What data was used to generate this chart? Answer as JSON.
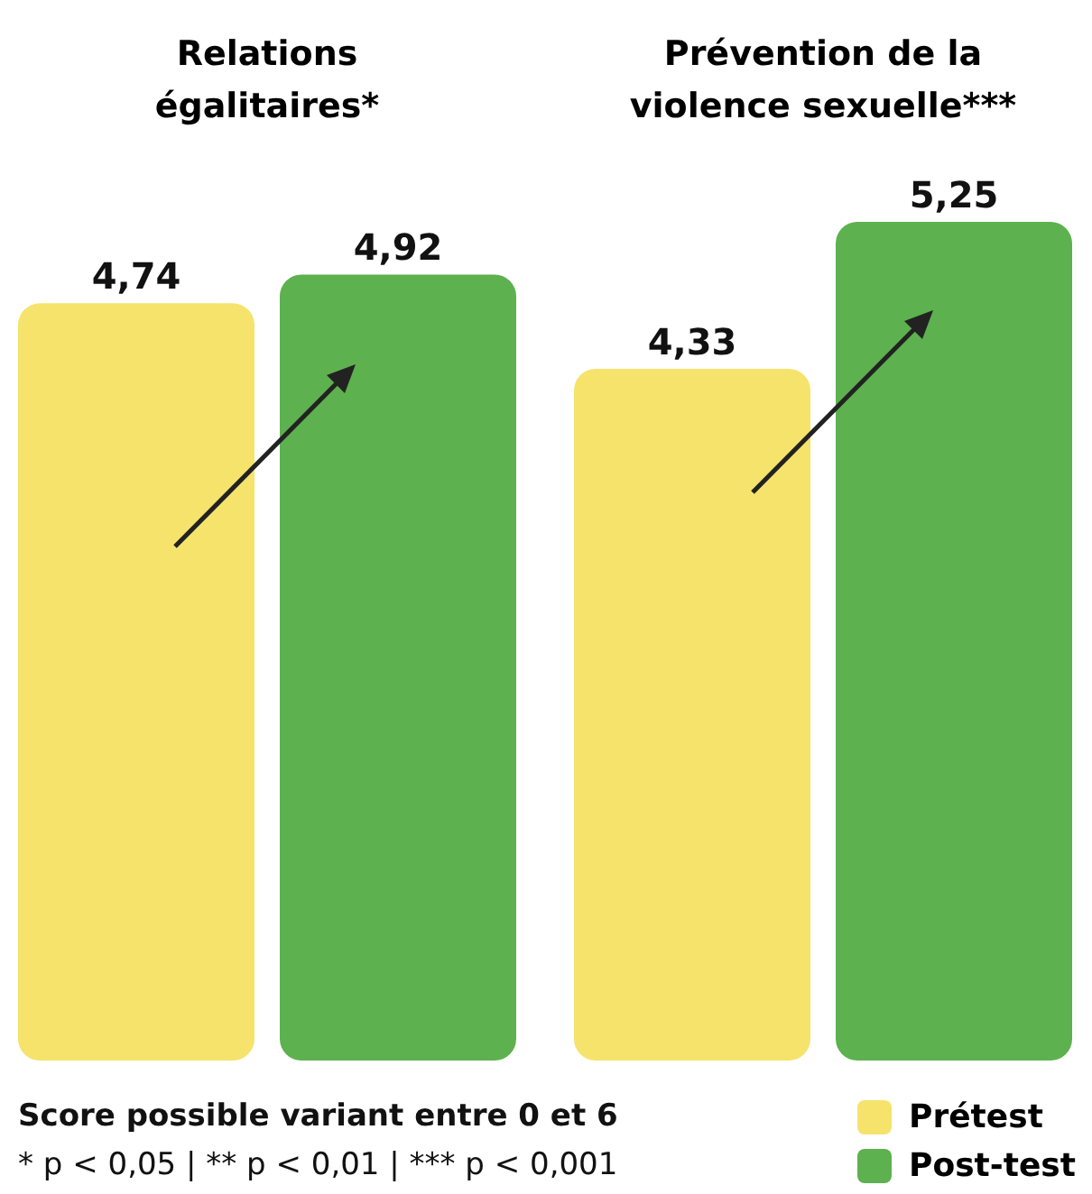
{
  "chart_data": [
    {
      "type": "bar",
      "title": "Relations égalitaires*",
      "categories": [
        null
      ],
      "annotations": [
        "Score possible variant entre 0 et 6",
        "* p < 0,05 | ** p < 0,01 | *** p < 0,001"
      ],
      "series": [
        {
          "color": "#f5e36c",
          "values": [
            4.74
          ],
          "value_labels": [
            "4,74"
          ]
        },
        {
          "color": "#5db14e",
          "values": [
            4.92
          ],
          "value_labels": [
            "4,92"
          ]
        }
      ]
    },
    {
      "type": "bar",
      "title": "Prévention de la violence sexuelle***",
      "categories": [
        null
      ],
      "legend": "bottom right",
      "series": [
        {
          "name": "Prétest",
          "color": "#f5e36c",
          "values": [
            4.33
          ],
          "value_labels": [
            "4,33"
          ]
        },
        {
          "name": "Post-test",
          "color": "#5db14e",
          "values": [
            5.25
          ],
          "value_labels": [
            "5,25"
          ]
        }
      ]
    }
  ]
}
